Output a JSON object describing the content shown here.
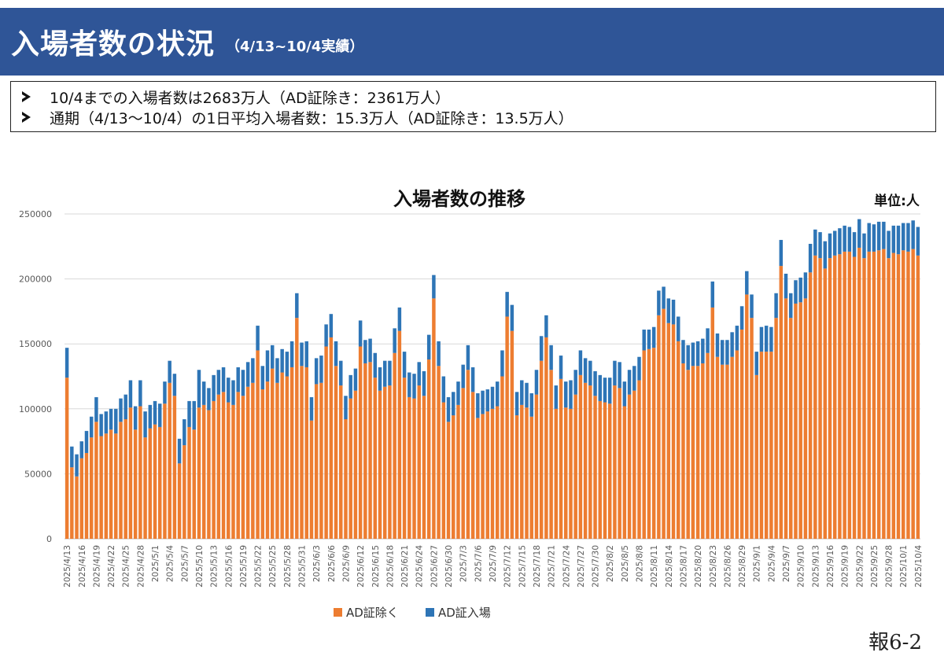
{
  "header": {
    "title": "入場者数の状況",
    "subtitle": "（4/13~10/4実績）",
    "background": "#2f5597"
  },
  "summary": {
    "bullet_icon": "arrow-bullet-icon",
    "items": [
      "10/4までの入場者数は2683万人（AD証除き：2361万人）",
      "通期（4/13～10/4）の1日平均入場者数：15.3万人（AD証除き：13.5万人）"
    ]
  },
  "chart_data": {
    "type": "bar",
    "stacked": true,
    "title": "入場者数の推移",
    "unit_label": "単位:人",
    "start_date": "2025/4/13",
    "x_tick_labels": [
      "2025/4/13",
      "2025/4/16",
      "2025/4/19",
      "2025/4/22",
      "2025/4/25",
      "2025/4/28",
      "2025/5/1",
      "2025/5/4",
      "2025/5/7",
      "2025/5/10",
      "2025/5/13",
      "2025/5/16",
      "2025/5/19",
      "2025/5/22",
      "2025/5/25",
      "2025/5/28",
      "2025/5/31",
      "2025/6/3",
      "2025/6/6",
      "2025/6/9",
      "2025/6/12",
      "2025/6/15",
      "2025/6/18",
      "2025/6/21",
      "2025/6/24",
      "2025/6/27",
      "2025/6/30",
      "2025/7/3",
      "2025/7/6",
      "2025/7/9",
      "2025/7/12",
      "2025/7/15",
      "2025/7/18",
      "2025/7/21",
      "2025/7/24",
      "2025/7/27",
      "2025/7/30",
      "2025/8/2",
      "2025/8/5",
      "2025/8/8",
      "2025/8/11",
      "2025/8/14",
      "2025/8/17",
      "2025/8/20",
      "2025/8/23",
      "2025/8/26",
      "2025/8/29",
      "2025/9/1",
      "2025/9/4",
      "2025/9/7",
      "2025/9/10",
      "2025/9/13",
      "2025/9/16",
      "2025/9/19",
      "2025/9/22",
      "2025/9/25",
      "2025/9/28",
      "2025/10/1",
      "2025/10/4"
    ],
    "ylim": [
      0,
      250000
    ],
    "y_ticks": [
      0,
      50000,
      100000,
      150000,
      200000,
      250000
    ],
    "grid": true,
    "legend_position": "bottom",
    "series": [
      {
        "name": "AD証除く",
        "color": "#ed7d31",
        "values": [
          124000,
          55000,
          48000,
          62000,
          66000,
          78000,
          90000,
          79000,
          81000,
          84000,
          81000,
          90000,
          92000,
          101000,
          84000,
          102000,
          78000,
          85000,
          88000,
          86000,
          104000,
          120000,
          110000,
          58000,
          72000,
          86000,
          84000,
          101000,
          103000,
          99000,
          106000,
          111000,
          113000,
          105000,
          103000,
          113000,
          110000,
          117000,
          120000,
          145000,
          115000,
          121000,
          131000,
          120000,
          128000,
          125000,
          132000,
          170000,
          133000,
          132000,
          91000,
          119000,
          120000,
          148000,
          155000,
          133000,
          118000,
          92000,
          108000,
          114000,
          148000,
          135000,
          136000,
          124000,
          114000,
          117000,
          118000,
          143000,
          160000,
          124000,
          109000,
          108000,
          118000,
          110000,
          138000,
          185000,
          133000,
          105000,
          90000,
          95000,
          103000,
          116000,
          130000,
          113000,
          93000,
          96000,
          98000,
          100000,
          102000,
          125000,
          171000,
          160000,
          95000,
          103000,
          101000,
          94000,
          111000,
          137000,
          155000,
          130000,
          100000,
          123000,
          101000,
          100000,
          111000,
          126000,
          120000,
          118000,
          110000,
          106000,
          105000,
          104000,
          118000,
          116000,
          102000,
          111000,
          114000,
          122000,
          145000,
          146000,
          147000,
          172000,
          177000,
          166000,
          165000,
          152000,
          135000,
          130000,
          133000,
          133000,
          135000,
          143000,
          178000,
          140000,
          134000,
          134000,
          140000,
          145000,
          161000,
          188000,
          170000,
          126000,
          144000,
          144000,
          144000,
          170000,
          210000,
          185000,
          170000,
          181000,
          182000,
          185000,
          205000,
          218000,
          216000,
          208000,
          216000,
          218000,
          219000,
          221000,
          221000,
          217000,
          224000,
          216000,
          221000,
          221000,
          222000,
          223000,
          216000,
          220000,
          219000,
          222000,
          221000,
          223000,
          218000
        ]
      },
      {
        "name": "AD証入場",
        "color": "#2e75b6",
        "values": [
          23000,
          16000,
          17000,
          13000,
          17000,
          16000,
          19000,
          17000,
          17000,
          16000,
          19000,
          18000,
          19000,
          21000,
          18000,
          20000,
          20000,
          18000,
          18000,
          18000,
          17000,
          17000,
          17000,
          19000,
          20000,
          20000,
          22000,
          29000,
          18000,
          17000,
          20000,
          19000,
          19000,
          19000,
          19000,
          19000,
          20000,
          19000,
          19000,
          19000,
          18000,
          24000,
          18000,
          19000,
          18000,
          19000,
          20000,
          19000,
          18000,
          20000,
          18000,
          20000,
          21000,
          17000,
          18000,
          19000,
          19000,
          18000,
          18000,
          17000,
          20000,
          18000,
          18000,
          19000,
          18000,
          20000,
          19000,
          19000,
          18000,
          20000,
          19000,
          19000,
          18000,
          19000,
          19000,
          18000,
          19000,
          20000,
          19000,
          18000,
          18000,
          18000,
          19000,
          19000,
          19000,
          18000,
          17000,
          17000,
          19000,
          20000,
          19000,
          20000,
          18000,
          19000,
          19000,
          18000,
          19000,
          19000,
          17000,
          19000,
          18000,
          18000,
          20000,
          22000,
          19000,
          19000,
          19000,
          19000,
          19000,
          20000,
          19000,
          20000,
          19000,
          20000,
          19000,
          19000,
          19000,
          18000,
          16000,
          15000,
          16000,
          19000,
          17000,
          19000,
          19000,
          19000,
          18000,
          19000,
          18000,
          19000,
          19000,
          19000,
          20000,
          18000,
          19000,
          19000,
          19000,
          19000,
          18000,
          18000,
          18000,
          18000,
          19000,
          20000,
          19000,
          19000,
          20000,
          19000,
          19000,
          18000,
          19000,
          20000,
          22000,
          20000,
          20000,
          21000,
          19000,
          19000,
          20000,
          20000,
          19000,
          19000,
          22000,
          19000,
          22000,
          21000,
          22000,
          21000,
          21000,
          21000,
          22000,
          21000,
          22000,
          22000,
          22000
        ]
      }
    ]
  },
  "footer": {
    "page_label": "報6-2"
  }
}
